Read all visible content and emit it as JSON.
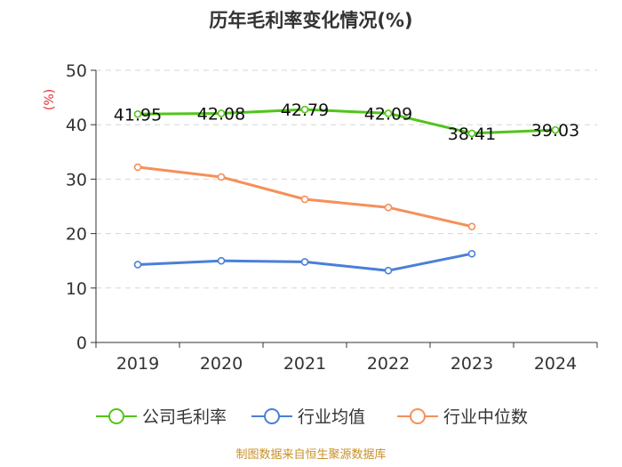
{
  "chart_data": {
    "type": "line",
    "title": "历年毛利率变化情况(%)",
    "ylabel": "(%)",
    "xlabel": "",
    "categories": [
      "2019",
      "2020",
      "2021",
      "2022",
      "2023",
      "2024"
    ],
    "ylim": [
      0,
      50
    ],
    "yticks": [
      0,
      10,
      20,
      30,
      40,
      50
    ],
    "grid": true,
    "legend_position": "bottom",
    "series": [
      {
        "name": "公司毛利率",
        "color": "#52c41a",
        "values": [
          41.95,
          42.08,
          42.79,
          42.09,
          38.41,
          39.03
        ],
        "labels": [
          "41.95",
          "42.08",
          "42.79",
          "42.09",
          "38.41",
          "39.03"
        ]
      },
      {
        "name": "行业均值",
        "color": "#4a7fd9",
        "values": [
          14.3,
          15.0,
          14.8,
          13.2,
          16.3,
          null
        ]
      },
      {
        "name": "行业中位数",
        "color": "#f5905a",
        "values": [
          32.2,
          30.4,
          26.3,
          24.8,
          21.3,
          null
        ]
      }
    ]
  },
  "source": "制图数据来自恒生聚源数据库"
}
